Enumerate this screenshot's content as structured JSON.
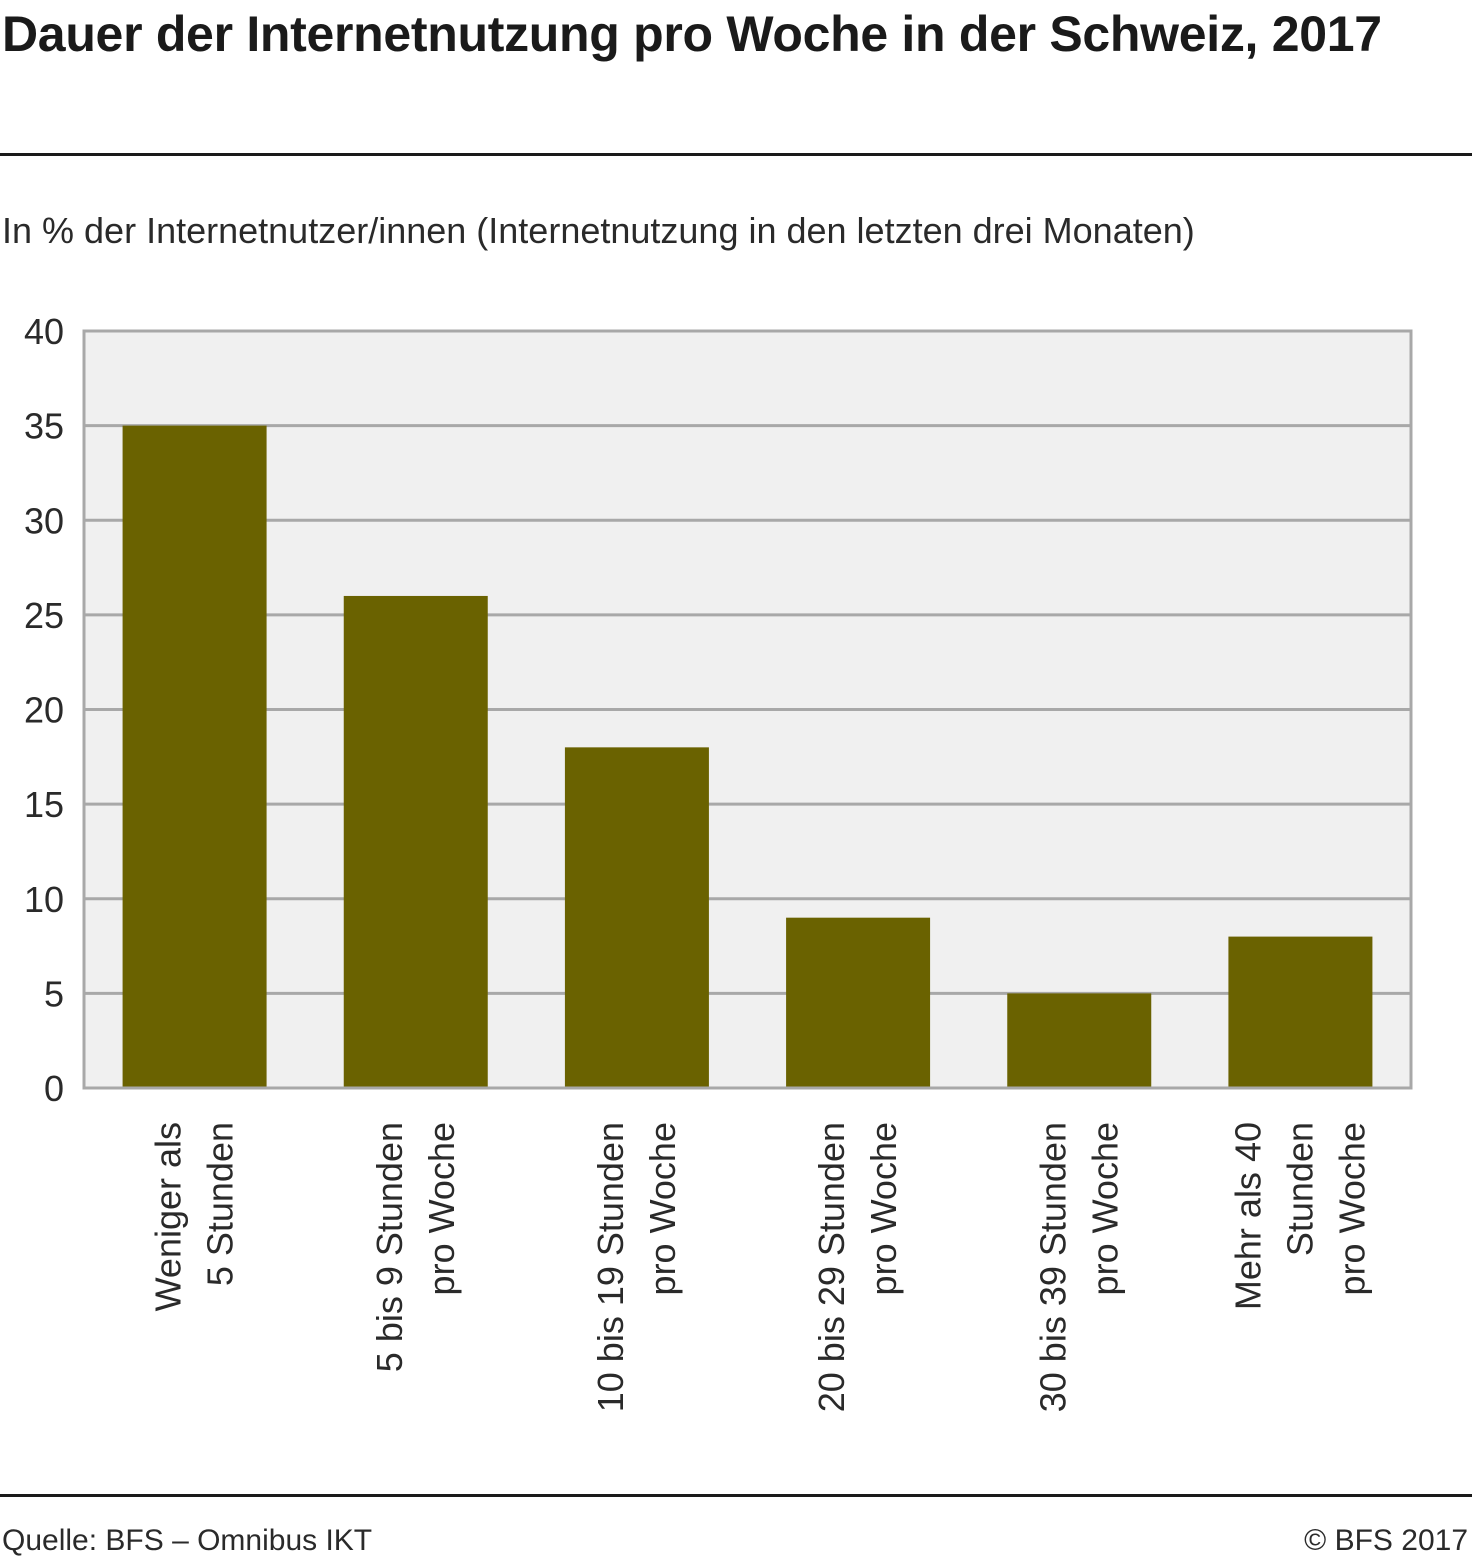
{
  "title": "Dauer der Internetnutzung pro Woche in der Schweiz, 2017",
  "subtitle": "In % der Internetnutzer/innen (Internetnutzung in den letzten drei Monaten)",
  "footer": {
    "source": "Quelle: BFS – Omnibus IKT",
    "copyright": "© BFS 2017"
  },
  "chart_data": {
    "type": "bar",
    "categories": [
      [
        "Weniger als",
        "5 Stunden"
      ],
      [
        "5 bis 9 Stunden",
        "pro Woche"
      ],
      [
        "10 bis 19 Stunden",
        "pro Woche"
      ],
      [
        "20 bis 29 Stunden",
        "pro Woche"
      ],
      [
        "30 bis 39 Stunden",
        "pro Woche"
      ],
      [
        "Mehr als 40",
        "Stunden",
        "pro Woche"
      ]
    ],
    "values": [
      35,
      26,
      18,
      9,
      5,
      8
    ],
    "ylim": [
      0,
      40
    ],
    "yticks": [
      0,
      5,
      10,
      15,
      20,
      25,
      30,
      35,
      40
    ],
    "grid": true,
    "colors": {
      "bar": "#6a6200",
      "plot_background": "#f0f0f0",
      "grid": "#a8a8a8"
    }
  }
}
